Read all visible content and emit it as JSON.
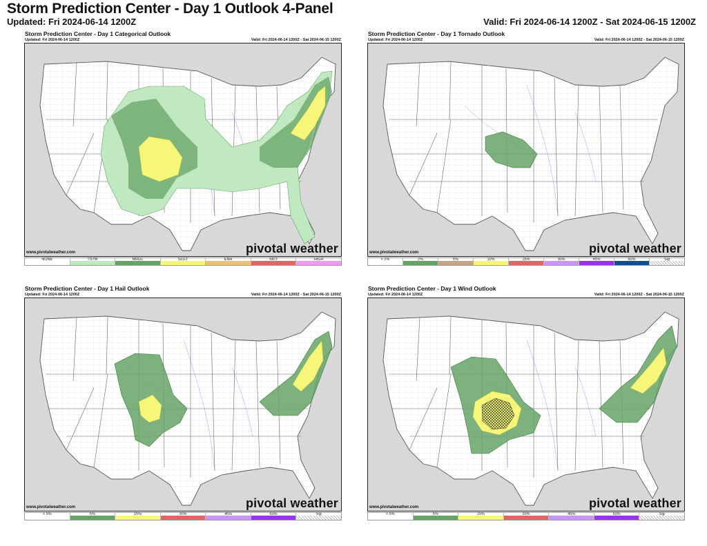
{
  "page": {
    "title": "Storm Prediction Center - Day 1 Outlook 4-Panel",
    "updated": "Updated: Fri 2024-06-14 1200Z",
    "valid": "Valid: Fri 2024-06-14 1200Z - Sat 2024-06-15 1200Z"
  },
  "colors": {
    "tstm": "#c1e9c1",
    "mrgl": "#66a366",
    "slgt": "#f6f67b",
    "enh": "#e6c27a",
    "mdt": "#e06666",
    "high": "#ee99ee",
    "tor_2": "#66a366",
    "tor_5": "#c4a484",
    "prob_5": "#66a366",
    "prob_15": "#f6f67b",
    "prob_30": "#e06666",
    "prob_45": "#c896f7",
    "prob_60": "#9933ee",
    "tor_60": "#104e8b",
    "land": "#ffffff",
    "outside": "#d8d8d8",
    "county": "#d4d4d4",
    "state": "#555555",
    "rivers": "#6f6fff"
  },
  "panels": {
    "categorical": {
      "title": "Storm Prediction Center - Day 1 Categorical Outlook",
      "updated": "Updated: Fri 2024-06-14 1200Z",
      "valid": "Valid: Fri 2024-06-14 1200Z - Sat 2024-06-15 1200Z",
      "source": "www.pivotalweather.com",
      "brand": "pivotal weather",
      "legend": [
        "NONE",
        "TSTM",
        "MRGL",
        "SLGT",
        "ENH",
        "MDT",
        "HIGH"
      ]
    },
    "tornado": {
      "title": "Storm Prediction Center - Day 1 Tornado Outlook",
      "updated": "Updated: Fri 2024-06-14 1200Z",
      "valid": "Valid: Fri 2024-06-14 1200Z - Sat 2024-06-15 1200Z",
      "source": "www.pivotalweather.com",
      "brand": "pivotal weather",
      "legend": [
        "< 2%",
        "2%",
        "5%",
        "10%",
        "15%",
        "30%",
        "45%",
        "60%",
        "Sig"
      ]
    },
    "hail": {
      "title": "Storm Prediction Center - Day 1 Hail Outlook",
      "updated": "Updated: Fri 2024-06-14 1200Z",
      "valid": "Valid: Fri 2024-06-14 1200Z - Sat 2024-06-15 1200Z",
      "source": "www.pivotalweather.com",
      "brand": "pivotal weather",
      "legend": [
        "< 5%",
        "5%",
        "15%",
        "30%",
        "45%",
        "60%",
        "Sig"
      ]
    },
    "wind": {
      "title": "Storm Prediction Center - Day 1 Wind Outlook",
      "updated": "Updated: Fri 2024-06-14 1200Z",
      "valid": "Valid: Fri 2024-06-14 1200Z - Sat 2024-06-15 1200Z",
      "source": "www.pivotalweather.com",
      "brand": "pivotal weather",
      "legend": [
        "< 5%",
        "5%",
        "15%",
        "30%",
        "45%",
        "60%",
        "Sig"
      ]
    }
  }
}
